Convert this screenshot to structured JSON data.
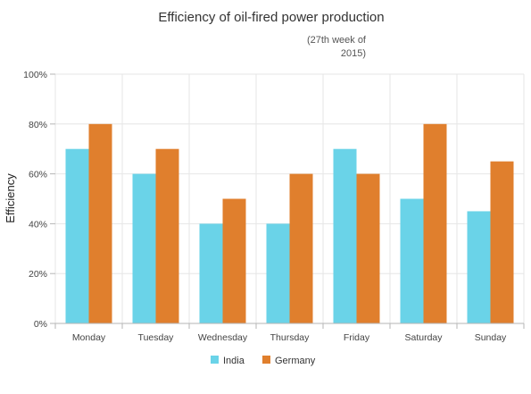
{
  "chart_data": {
    "type": "bar",
    "title": "Efficiency of oil-fired power production",
    "subtitle_lines": [
      "(27th week of",
      "2015)"
    ],
    "xlabel": "",
    "ylabel": "Efficiency",
    "categories": [
      "Monday",
      "Tuesday",
      "Wednesday",
      "Thursday",
      "Friday",
      "Saturday",
      "Sunday"
    ],
    "series": [
      {
        "name": "India",
        "color": "#6ad3e8",
        "values": [
          70,
          60,
          40,
          40,
          70,
          50,
          45
        ]
      },
      {
        "name": "Germany",
        "color": "#e07f2d",
        "values": [
          80,
          70,
          50,
          60,
          60,
          80,
          65
        ]
      }
    ],
    "ylim": [
      0,
      100
    ],
    "yticks": [
      0,
      20,
      40,
      60,
      80,
      100
    ],
    "ytick_labels": [
      "0%",
      "20%",
      "40%",
      "60%",
      "80%",
      "100%"
    ],
    "grid": true,
    "legend_position": "bottom-center"
  }
}
